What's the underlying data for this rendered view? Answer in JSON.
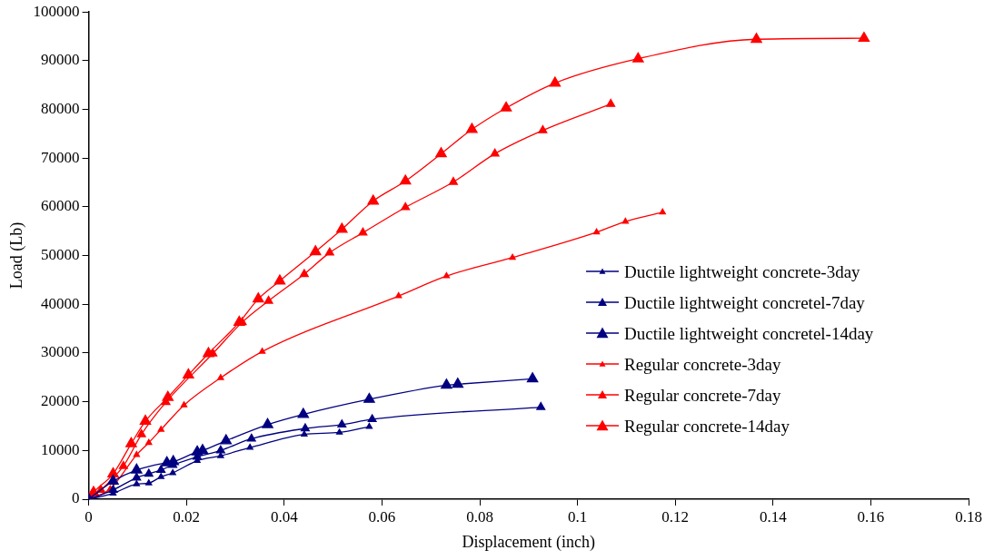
{
  "chart_data": {
    "type": "line",
    "xlabel": "Displacement (inch)",
    "ylabel": "Load (Lb)",
    "xlim": [
      0,
      0.18
    ],
    "xticks": [
      0,
      0.02,
      0.04,
      0.06,
      0.08,
      0.1,
      0.12,
      0.14,
      0.16,
      0.18
    ],
    "ylim": [
      0,
      100000
    ],
    "yticks": [
      0,
      10000,
      20000,
      30000,
      40000,
      50000,
      60000,
      70000,
      80000,
      90000,
      100000
    ],
    "grid": false,
    "legend": "right",
    "marker": "triangle",
    "line_style": "solid",
    "series": [
      {
        "name": "Ductile lightweight concrete-3day",
        "color": "#000080",
        "x": [
          0,
          0.005,
          0.0098,
          0.0123,
          0.0148,
          0.0172,
          0.0222,
          0.027,
          0.033,
          0.0441,
          0.0513,
          0.0574
        ],
        "values": [
          0,
          1200,
          3100,
          3300,
          4600,
          5400,
          7900,
          8900,
          10600,
          13300,
          13700,
          14900
        ]
      },
      {
        "name": "Ductile lightweight concretel-7day",
        "color": "#000080",
        "x": [
          0,
          0.005,
          0.0098,
          0.0123,
          0.0148,
          0.0172,
          0.0222,
          0.027,
          0.0333,
          0.0443,
          0.0518,
          0.058,
          0.0925
        ],
        "values": [
          0,
          1900,
          4400,
          5200,
          6000,
          7000,
          8700,
          10000,
          12400,
          14500,
          15300,
          16400,
          18900
        ]
      },
      {
        "name": "Ductile lightweight concretel-14day",
        "color": "#000080",
        "x": [
          0,
          0.005,
          0.0098,
          0.016,
          0.0173,
          0.0222,
          0.0233,
          0.0281,
          0.0366,
          0.0439,
          0.0574,
          0.0732,
          0.0755,
          0.0908
        ],
        "values": [
          0,
          3700,
          6000,
          7500,
          7700,
          9700,
          10000,
          12000,
          15300,
          17400,
          20500,
          23400,
          23600,
          24700
        ]
      },
      {
        "name": "Regular concrete-3day",
        "color": "#ff0000",
        "x": [
          0,
          0.0044,
          0.0098,
          0.0123,
          0.0148,
          0.0195,
          0.027,
          0.0355,
          0.0634,
          0.0732,
          0.0867,
          0.1039,
          0.1098,
          0.1174
        ],
        "values": [
          0,
          2100,
          9100,
          11600,
          14300,
          19300,
          24900,
          30300,
          41700,
          45800,
          49600,
          54800,
          57000,
          58900
        ]
      },
      {
        "name": "Regular concrete-7day",
        "color": "#ff0000",
        "x": [
          0,
          0.0025,
          0.0071,
          0.0108,
          0.0158,
          0.0254,
          0.0314,
          0.0368,
          0.0441,
          0.0493,
          0.0561,
          0.0648,
          0.0746,
          0.0831,
          0.0929,
          0.1068
        ],
        "values": [
          0,
          1900,
          6800,
          13300,
          19900,
          29900,
          36300,
          40700,
          46200,
          50600,
          54700,
          59900,
          65100,
          70900,
          75700,
          81100
        ]
      },
      {
        "name": "Regular concrete-14day",
        "color": "#ff0000",
        "x": [
          0,
          0.001,
          0.005,
          0.0087,
          0.0116,
          0.0162,
          0.0204,
          0.0245,
          0.0308,
          0.0347,
          0.0391,
          0.0464,
          0.0518,
          0.0582,
          0.0648,
          0.0721,
          0.0784,
          0.0854,
          0.0954,
          0.1124,
          0.1366,
          0.1586
        ],
        "values": [
          0,
          1400,
          5200,
          11400,
          16000,
          20900,
          25500,
          29900,
          36300,
          41100,
          44800,
          50800,
          55400,
          61200,
          65300,
          70900,
          75900,
          80300,
          85400,
          90400,
          94400,
          94600
        ]
      }
    ]
  }
}
